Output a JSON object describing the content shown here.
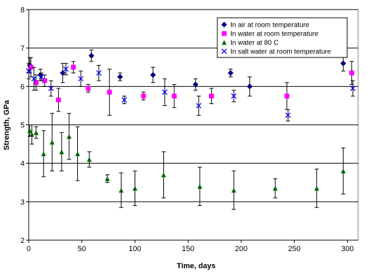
{
  "chart_data": {
    "type": "scatter",
    "xlabel": "Time, days",
    "ylabel": "Strength, GPa",
    "xlim": [
      0,
      310
    ],
    "ylim": [
      2,
      8
    ],
    "xticks": [
      0,
      50,
      100,
      150,
      200,
      250,
      300
    ],
    "yticks": [
      2,
      3,
      4,
      5,
      6,
      7,
      8
    ],
    "grid": "horizontal",
    "legend_position": "top-right",
    "error_bars": true,
    "series": [
      {
        "name": "In air at room temperature",
        "marker": "diamond",
        "color": "#000080",
        "points": [
          {
            "x": 1,
            "y": 6.55,
            "err": 0.2
          },
          {
            "x": 11,
            "y": 6.3,
            "err": 0.15
          },
          {
            "x": 32,
            "y": 6.35,
            "err": 0.25
          },
          {
            "x": 59,
            "y": 6.8,
            "err": 0.15
          },
          {
            "x": 86,
            "y": 6.25,
            "err": 0.1
          },
          {
            "x": 117,
            "y": 6.3,
            "err": 0.2
          },
          {
            "x": 157,
            "y": 6.05,
            "err": 0.15
          },
          {
            "x": 190,
            "y": 6.35,
            "err": 0.1
          },
          {
            "x": 208,
            "y": 6.0,
            "err": 0.25
          },
          {
            "x": 296,
            "y": 6.6,
            "err": 0.2
          }
        ]
      },
      {
        "name": "In water at room temperature",
        "marker": "square",
        "color": "#ff00ff",
        "points": [
          {
            "x": 2,
            "y": 6.5,
            "err": 0.25
          },
          {
            "x": 7,
            "y": 6.1,
            "err": 0.2
          },
          {
            "x": 15,
            "y": 6.15,
            "err": 0.15
          },
          {
            "x": 28,
            "y": 5.65,
            "err": 0.3
          },
          {
            "x": 42,
            "y": 6.5,
            "err": 0.15
          },
          {
            "x": 56,
            "y": 5.95,
            "err": 0.1
          },
          {
            "x": 76,
            "y": 5.85,
            "err": 0.6
          },
          {
            "x": 108,
            "y": 5.75,
            "err": 0.1
          },
          {
            "x": 137,
            "y": 5.75,
            "err": 0.3
          },
          {
            "x": 172,
            "y": 5.75,
            "err": 0.2
          },
          {
            "x": 243,
            "y": 5.75,
            "err": 0.35
          },
          {
            "x": 304,
            "y": 6.35,
            "err": 0.3
          }
        ]
      },
      {
        "name": "In water at 80 C",
        "marker": "triangle",
        "color": "#006400",
        "points": [
          {
            "x": 1,
            "y": 4.85,
            "err": 0.15
          },
          {
            "x": 3,
            "y": 4.75,
            "err": 0.25
          },
          {
            "x": 7,
            "y": 4.8,
            "err": 0.15
          },
          {
            "x": 14,
            "y": 4.25,
            "err": 0.6
          },
          {
            "x": 22,
            "y": 4.55,
            "err": 0.75
          },
          {
            "x": 31,
            "y": 4.3,
            "err": 0.5
          },
          {
            "x": 38,
            "y": 4.7,
            "err": 0.6
          },
          {
            "x": 46,
            "y": 4.25,
            "err": 0.7
          },
          {
            "x": 57,
            "y": 4.1,
            "err": 0.2
          },
          {
            "x": 74,
            "y": 3.6,
            "err": 0.1
          },
          {
            "x": 87,
            "y": 3.3,
            "err": 0.45
          },
          {
            "x": 100,
            "y": 3.35,
            "err": 0.45
          },
          {
            "x": 127,
            "y": 3.7,
            "err": 0.6
          },
          {
            "x": 161,
            "y": 3.4,
            "err": 0.5
          },
          {
            "x": 193,
            "y": 3.3,
            "err": 0.5
          },
          {
            "x": 232,
            "y": 3.35,
            "err": 0.25
          },
          {
            "x": 271,
            "y": 3.35,
            "err": 0.5
          },
          {
            "x": 296,
            "y": 3.8,
            "err": 0.6
          }
        ]
      },
      {
        "name": "In salt water at room temperature",
        "marker": "x",
        "color": "#0000ff",
        "points": [
          {
            "x": 0,
            "y": 6.4,
            "err": 0.2
          },
          {
            "x": 5,
            "y": 6.2,
            "err": 0.3
          },
          {
            "x": 12,
            "y": 6.25,
            "err": 0.1
          },
          {
            "x": 21,
            "y": 5.95,
            "err": 0.2
          },
          {
            "x": 35,
            "y": 6.45,
            "err": 0.15
          },
          {
            "x": 49,
            "y": 6.2,
            "err": 0.2
          },
          {
            "x": 66,
            "y": 6.35,
            "err": 0.2
          },
          {
            "x": 90,
            "y": 5.65,
            "err": 0.1
          },
          {
            "x": 128,
            "y": 5.85,
            "err": 0.35
          },
          {
            "x": 160,
            "y": 5.5,
            "err": 0.25
          },
          {
            "x": 193,
            "y": 5.75,
            "err": 0.15
          },
          {
            "x": 244,
            "y": 5.25,
            "err": 0.15
          },
          {
            "x": 305,
            "y": 5.95,
            "err": 0.2
          }
        ]
      }
    ]
  }
}
